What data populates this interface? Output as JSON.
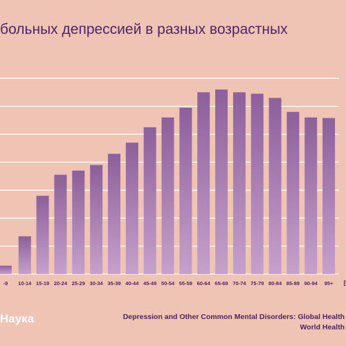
{
  "title": "тво больных депрессией в разных возрастных",
  "brand": "Наука",
  "source_line1": "Depression and Other Common Mental Disorders: Global Health",
  "source_line2": "World Health",
  "axis_unit_fragment": "В",
  "colors": {
    "background": "#f0c4b4",
    "bar_top": "#8d5f9b",
    "bar_bottom": "#c6a1cb",
    "text": "#4e2466",
    "grid": "#ffffff"
  },
  "chart_data": {
    "type": "bar",
    "categories": [
      "-9",
      "10-14",
      "15-19",
      "20-24",
      "25-29",
      "30-34",
      "35-39",
      "40-44",
      "45-49",
      "50-54",
      "55-59",
      "60-64",
      "65-69",
      "70-74",
      "75-79",
      "80-84",
      "85-89",
      "90-94",
      "95+"
    ],
    "values": [
      0.3,
      1.35,
      2.8,
      3.55,
      3.7,
      3.9,
      4.3,
      4.7,
      5.25,
      5.6,
      5.95,
      6.5,
      6.6,
      6.5,
      6.45,
      6.3,
      5.8,
      5.6,
      5.58
    ],
    "ylim": [
      0,
      7.5
    ],
    "grid": true
  }
}
